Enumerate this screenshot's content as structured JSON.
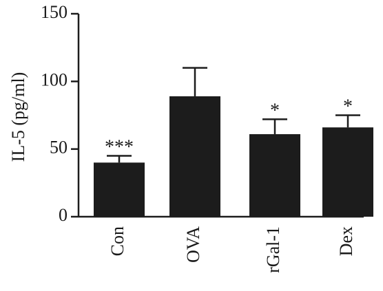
{
  "chart_data": {
    "type": "bar",
    "ylabel": "IL-5 (pg/ml)",
    "xlabel": "",
    "ylim": [
      0,
      150
    ],
    "yticks": [
      0,
      50,
      100,
      150
    ],
    "categories": [
      "Con",
      "OVA",
      "rGal-1",
      "Dex"
    ],
    "values": [
      40,
      89,
      61,
      66
    ],
    "error_upper": [
      5,
      21,
      11,
      9
    ],
    "significance": [
      "***",
      "",
      "*",
      "*"
    ],
    "bar_color": "#1c1c1c"
  }
}
